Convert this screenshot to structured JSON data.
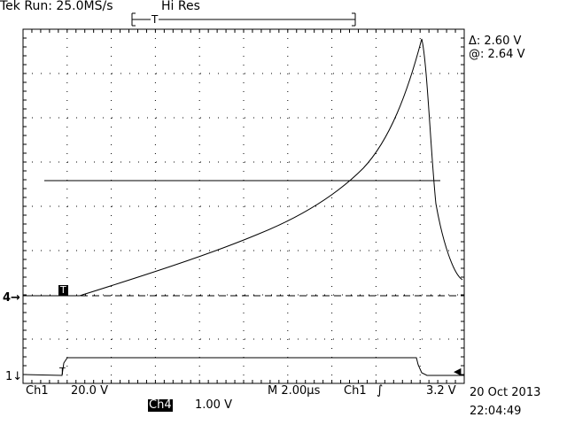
{
  "header": {
    "status": "Tek Run: 25.0MS/s",
    "mode": "Hi Res",
    "trigger_pos_marker": "T"
  },
  "cursor_readout": {
    "delta": "Δ: 2.60 V",
    "at": "@: 2.64 V"
  },
  "markers": {
    "ch4_ground": "4→",
    "ch1_ground": "1↓",
    "trigger_t_ch4": "T",
    "trigger_t_ch1": "T",
    "trigger_level_arrow": "◀"
  },
  "footer": {
    "ch1_label": "Ch1",
    "ch1_scale": "20.0 V",
    "ch4_label": "Ch4",
    "ch4_scale": "1.00 V",
    "timebase": "M 2.00µs",
    "trigger_source": "Ch1",
    "trigger_slope": "∫",
    "trigger_level": "3.2 V",
    "date": "20 Oct 2013",
    "time": "22:04:49"
  },
  "colors": {
    "background": "#ffffff",
    "trace": "#000000",
    "grid": "#000000"
  }
}
